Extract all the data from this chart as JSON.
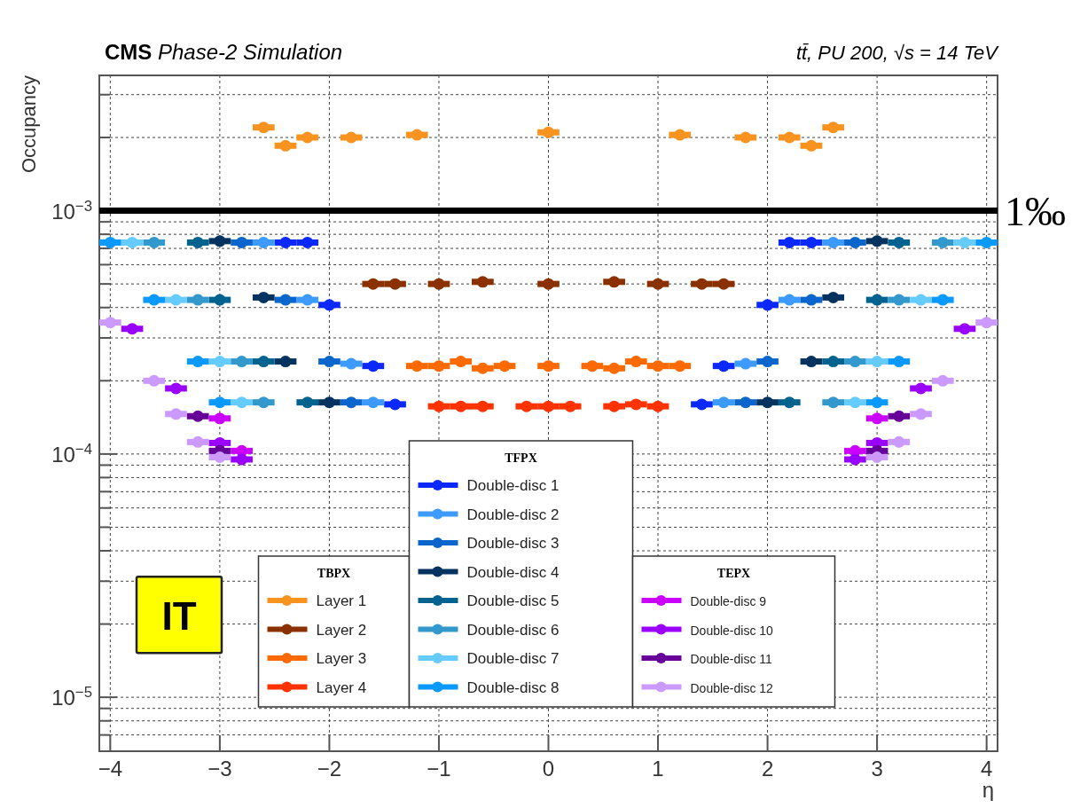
{
  "chart_data": {
    "type": "scatter",
    "title": "CMS Phase-2 Simulation",
    "xlabel": "η",
    "ylabel": "Occupancy",
    "legend_title": [
      "TBPX",
      "TFPX",
      "TEPX"
    ],
    "annotations": [
      "tt̄, PU 200, √s = 14 TeV",
      "IT"
    ],
    "log": "y",
    "grid": true,
    "legend": "bottom",
    "marker": "circle",
    "xlim": [
      -4.1,
      4.1
    ],
    "xticks": [
      {
        "value": -4,
        "label": "−4"
      },
      {
        "value": -3,
        "label": "−3"
      },
      {
        "value": -2,
        "label": "−2"
      },
      {
        "value": -1,
        "label": "−1"
      },
      0,
      1,
      2,
      3,
      4
    ],
    "ylim": [
      6e-06,
      0.0036
    ],
    "yticks": [
      {
        "value": 7e-06,
        "label": null
      },
      {
        "value": 8e-06,
        "label": null
      },
      {
        "value": 9e-06,
        "label": null
      },
      {
        "value": 1e-05,
        "label": "10$^{−5}$"
      },
      {
        "value": 2e-05,
        "label": null
      },
      {
        "value": 3e-05,
        "label": null
      },
      {
        "value": 4e-05,
        "label": null
      },
      {
        "value": 5e-05,
        "label": null
      },
      {
        "value": 6e-05,
        "label": null
      },
      {
        "value": 7e-05,
        "label": null
      },
      {
        "value": 8e-05,
        "label": null
      },
      {
        "value": 9e-05,
        "label": null
      },
      {
        "value": 0.0001,
        "label": "10$^{−4}$"
      },
      {
        "value": 0.0002,
        "label": null
      },
      {
        "value": 0.0003,
        "label": null
      },
      {
        "value": 0.0004,
        "label": null
      },
      {
        "value": 0.0005,
        "label": null
      },
      {
        "value": 0.0006,
        "label": null
      },
      {
        "value": 0.0007,
        "label": null
      },
      {
        "value": 0.0008,
        "label": null
      },
      {
        "value": 0.0009,
        "label": null
      },
      {
        "value": 0.001,
        "label": "10$^{−3}$"
      },
      {
        "value": 0.002,
        "label": null
      },
      {
        "value": 0.003,
        "label": null
      }
    ],
    "ref_lines": [
      {
        "axis": "y",
        "value": 0.001,
        "label": "1‰",
        "color": "#000000"
      }
    ],
    "series": [
      {
        "name": "Layer 1",
        "color": "#f7931e",
        "x": [
          -2.6,
          -2.4,
          -2.2,
          -1.8,
          -1.2,
          0,
          1.2,
          1.8,
          2.2,
          2.4,
          2.6
        ],
        "values": [
          0.0022,
          0.00185,
          0.002,
          0.002,
          0.00205,
          0.0021,
          0.00205,
          0.002,
          0.002,
          0.00185,
          0.0022
        ],
        "xerrors": [
          0.1,
          0.1,
          0.1,
          0.1,
          0.1,
          0.1,
          0.1,
          0.1,
          0.1,
          0.1,
          0.1
        ]
      },
      {
        "name": "Layer 2",
        "color": "#8b3000",
        "x": [
          -1.6,
          -1.4,
          -1,
          -0.6,
          0,
          0.6,
          1,
          1.4,
          1.6
        ],
        "values": [
          0.0005,
          0.0005,
          0.0005,
          0.00051,
          0.0005,
          0.00051,
          0.0005,
          0.0005,
          0.0005
        ],
        "xerrors": [
          0.1,
          0.1,
          0.1,
          0.1,
          0.1,
          0.1,
          0.1,
          0.1,
          0.1
        ]
      },
      {
        "name": "Layer 3",
        "color": "#ff6a00",
        "x": [
          -1.2,
          -1,
          -0.8,
          -0.6,
          -0.4,
          0,
          0.4,
          0.6,
          0.8,
          1,
          1.2
        ],
        "values": [
          0.00023,
          0.00023,
          0.00024,
          0.000225,
          0.00023,
          0.00023,
          0.00023,
          0.000225,
          0.00024,
          0.00023,
          0.00023
        ],
        "xerrors": [
          0.1,
          0.1,
          0.1,
          0.1,
          0.1,
          0.1,
          0.1,
          0.1,
          0.1,
          0.1,
          0.1
        ]
      },
      {
        "name": "Layer 4",
        "color": "#ff3300",
        "x": [
          -1,
          -0.8,
          -0.6,
          -0.2,
          0,
          0.2,
          0.6,
          0.8,
          1
        ],
        "values": [
          0.000157,
          0.000157,
          0.000157,
          0.000157,
          0.000157,
          0.000157,
          0.000157,
          0.00016,
          0.000157
        ],
        "xerrors": [
          0.1,
          0.1,
          0.1,
          0.1,
          0.1,
          0.1,
          0.1,
          0.1,
          0.1
        ]
      },
      {
        "name": "Double-disc 1",
        "color": "#0a28ff",
        "x": [
          -2.4,
          -2.2,
          -2,
          -1.6,
          -1.4,
          1.4,
          1.6,
          2,
          2.2,
          2.4
        ],
        "values": [
          0.00074,
          0.00074,
          0.00041,
          0.00023,
          0.00016,
          0.00016,
          0.00023,
          0.00041,
          0.00074,
          0.00074
        ],
        "xerrors": [
          0.1,
          0.1,
          0.1,
          0.1,
          0.1,
          0.1,
          0.1,
          0.1,
          0.1,
          0.1
        ]
      },
      {
        "name": "Double-disc 2",
        "color": "#3d9bff",
        "x": [
          -2.6,
          -2.2,
          -1.8,
          -1.6,
          1.6,
          1.8,
          2.2,
          2.6
        ],
        "values": [
          0.00074,
          0.00043,
          0.000235,
          0.000163,
          0.000163,
          0.000235,
          0.00043,
          0.00074
        ],
        "xerrors": [
          0.1,
          0.1,
          0.1,
          0.1,
          0.1,
          0.1,
          0.1,
          0.1
        ]
      },
      {
        "name": "Double-disc 3",
        "color": "#0a66cc",
        "x": [
          -2.8,
          -2.4,
          -2,
          -1.8,
          1.8,
          2,
          2.4,
          2.8
        ],
        "values": [
          0.00074,
          0.00043,
          0.00024,
          0.000163,
          0.000163,
          0.00024,
          0.00043,
          0.00074
        ],
        "xerrors": [
          0.1,
          0.1,
          0.1,
          0.1,
          0.1,
          0.1,
          0.1,
          0.1
        ]
      },
      {
        "name": "Double-disc 4",
        "color": "#04335f",
        "x": [
          -3,
          -2.6,
          -2.4,
          -2,
          2,
          2.4,
          2.6,
          3
        ],
        "values": [
          0.00075,
          0.00044,
          0.00024,
          0.000163,
          0.000163,
          0.00024,
          0.00044,
          0.00075
        ],
        "xerrors": [
          0.1,
          0.1,
          0.1,
          0.1,
          0.1,
          0.1,
          0.1,
          0.1
        ]
      },
      {
        "name": "Double-disc 5",
        "color": "#00638f",
        "x": [
          -3.2,
          -3,
          -2.6,
          -2.2,
          2.2,
          2.6,
          3,
          3.2
        ],
        "values": [
          0.00074,
          0.00043,
          0.00024,
          0.000163,
          0.000163,
          0.00024,
          0.00043,
          0.00074
        ],
        "xerrors": [
          0.1,
          0.1,
          0.1,
          0.1,
          0.1,
          0.1,
          0.1,
          0.1
        ]
      },
      {
        "name": "Double-disc 6",
        "color": "#3399cc",
        "x": [
          -3.6,
          -3.2,
          -2.8,
          -2.6,
          2.6,
          2.8,
          3.2,
          3.6
        ],
        "values": [
          0.00074,
          0.00043,
          0.00024,
          0.000163,
          0.000163,
          0.00024,
          0.00043,
          0.00074
        ],
        "xerrors": [
          0.1,
          0.1,
          0.1,
          0.1,
          0.1,
          0.1,
          0.1,
          0.1
        ]
      },
      {
        "name": "Double-disc 7",
        "color": "#66ccff",
        "x": [
          -3.8,
          -3.4,
          -3,
          -2.8,
          2.8,
          3,
          3.4,
          3.8
        ],
        "values": [
          0.00074,
          0.00043,
          0.00024,
          0.000163,
          0.000163,
          0.00024,
          0.00043,
          0.00074
        ],
        "xerrors": [
          0.1,
          0.1,
          0.1,
          0.1,
          0.1,
          0.1,
          0.1,
          0.1
        ]
      },
      {
        "name": "Double-disc 8",
        "color": "#0a99ff",
        "x": [
          -4,
          -3.6,
          -3.2,
          -3,
          3,
          3.2,
          3.6,
          4
        ],
        "values": [
          0.00074,
          0.00043,
          0.00024,
          0.000163,
          0.000163,
          0.00024,
          0.00043,
          0.00074
        ],
        "xerrors": [
          0.1,
          0.1,
          0.1,
          0.1,
          0.1,
          0.1,
          0.1,
          0.1
        ]
      },
      {
        "name": "Double-disc 9",
        "color": "#cc00ff",
        "x": [
          -3,
          -2.8,
          2.8,
          3
        ],
        "values": [
          0.00014,
          0.000103,
          0.000103,
          0.00014
        ],
        "xerrors": [
          0.1,
          0.1,
          0.1,
          0.1
        ]
      },
      {
        "name": "Double-disc 10",
        "color": "#9900ff",
        "x": [
          -3.8,
          -3.4,
          -3,
          -2.8,
          2.8,
          3,
          3.4,
          3.8
        ],
        "values": [
          0.000327,
          0.000186,
          0.000111,
          9.5e-05,
          9.5e-05,
          0.000111,
          0.000186,
          0.000327
        ],
        "xerrors": [
          0.1,
          0.1,
          0.1,
          0.1,
          0.1,
          0.1,
          0.1,
          0.1
        ]
      },
      {
        "name": "Double-disc 11",
        "color": "#660099",
        "x": [
          -3.2,
          -3,
          3,
          3.2
        ],
        "values": [
          0.000143,
          0.000103,
          0.000103,
          0.000143
        ],
        "xerrors": [
          0.1,
          0.1,
          0.1,
          0.1
        ]
      },
      {
        "name": "Double-disc 12",
        "color": "#cc99ff",
        "x": [
          -4,
          -3.6,
          -3.4,
          -3.2,
          -3,
          3,
          3.2,
          3.4,
          3.6,
          4
        ],
        "values": [
          0.000347,
          0.0002,
          0.000146,
          0.000112,
          9.7e-05,
          9.7e-05,
          0.000112,
          0.000146,
          0.0002,
          0.000347
        ],
        "xerrors": [
          0.1,
          0.1,
          0.1,
          0.1,
          0.1,
          0.1,
          0.1,
          0.1,
          0.1,
          0.1
        ]
      }
    ]
  }
}
